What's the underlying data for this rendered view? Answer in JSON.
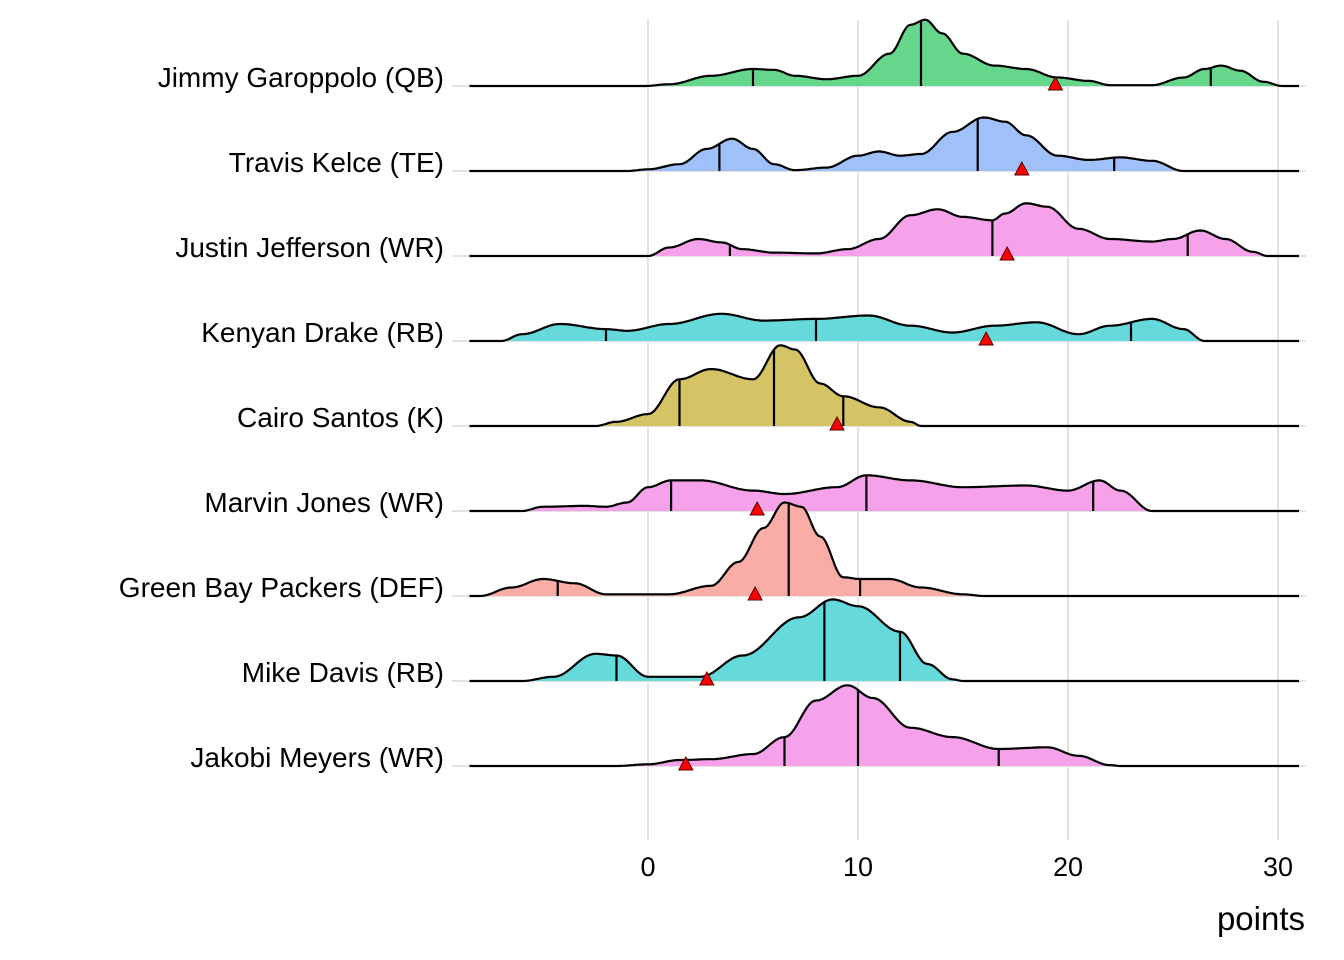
{
  "chart_data": {
    "type": "ridgeline",
    "title": "",
    "xlabel": "points",
    "ylabel": "",
    "xlim": [
      -8.5,
      31
    ],
    "xticks": [
      0,
      10,
      20,
      30
    ],
    "xtick_labels": [
      "0",
      "10",
      "20",
      "30"
    ],
    "grid": "vertical major gridlines",
    "legend": "none",
    "marker": {
      "shape": "triangle",
      "color": "#FF0000",
      "meaning": "actual/projected point marker per player"
    },
    "series": [
      {
        "name": "Jimmy Garoppolo (QB)",
        "color": "#66D68A",
        "quantiles": [
          5,
          13,
          26.8
        ],
        "marker_x": 19.4,
        "density": [
          [
            -0.2,
            0
          ],
          [
            1,
            0.02
          ],
          [
            3,
            0.12
          ],
          [
            5,
            0.2
          ],
          [
            6,
            0.19
          ],
          [
            7,
            0.12
          ],
          [
            8.5,
            0.08
          ],
          [
            10,
            0.12
          ],
          [
            11.5,
            0.38
          ],
          [
            12.5,
            0.72
          ],
          [
            13.2,
            0.78
          ],
          [
            14,
            0.62
          ],
          [
            15,
            0.38
          ],
          [
            16.5,
            0.24
          ],
          [
            18,
            0.2
          ],
          [
            19.5,
            0.1
          ],
          [
            21,
            0.06
          ],
          [
            22,
            0.01
          ],
          [
            24,
            0.01
          ],
          [
            25.5,
            0.1
          ],
          [
            26.5,
            0.2
          ],
          [
            27.3,
            0.24
          ],
          [
            28.2,
            0.18
          ],
          [
            29.3,
            0.05
          ],
          [
            30.2,
            0
          ]
        ]
      },
      {
        "name": "Travis Kelce (TE)",
        "color": "#A0C0FA",
        "quantiles": [
          3.4,
          15.7,
          22.2
        ],
        "marker_x": 17.8,
        "density": [
          [
            -1,
            0
          ],
          [
            0,
            0.02
          ],
          [
            1.5,
            0.08
          ],
          [
            2.8,
            0.26
          ],
          [
            4,
            0.38
          ],
          [
            5,
            0.26
          ],
          [
            6,
            0.08
          ],
          [
            7,
            0.01
          ],
          [
            8.5,
            0.04
          ],
          [
            10,
            0.18
          ],
          [
            11,
            0.23
          ],
          [
            12,
            0.18
          ],
          [
            13,
            0.2
          ],
          [
            14.5,
            0.46
          ],
          [
            16,
            0.63
          ],
          [
            17,
            0.58
          ],
          [
            18,
            0.42
          ],
          [
            19.5,
            0.18
          ],
          [
            21,
            0.13
          ],
          [
            22.5,
            0.16
          ],
          [
            24,
            0.12
          ],
          [
            25.5,
            0
          ],
          [
            26,
            0
          ]
        ]
      },
      {
        "name": "Justin Jefferson (WR)",
        "color": "#F6A2EA",
        "quantiles": [
          3.9,
          16.4,
          25.7
        ],
        "marker_x": 17.1,
        "density": [
          [
            0,
            0
          ],
          [
            1,
            0.1
          ],
          [
            2.4,
            0.2
          ],
          [
            3.5,
            0.16
          ],
          [
            4.5,
            0.08
          ],
          [
            6,
            0.04
          ],
          [
            8,
            0.03
          ],
          [
            9.5,
            0.08
          ],
          [
            11,
            0.2
          ],
          [
            12.5,
            0.48
          ],
          [
            13.8,
            0.55
          ],
          [
            15,
            0.46
          ],
          [
            16.4,
            0.42
          ],
          [
            17,
            0.5
          ],
          [
            18,
            0.62
          ],
          [
            19,
            0.58
          ],
          [
            20.5,
            0.32
          ],
          [
            22,
            0.2
          ],
          [
            24,
            0.17
          ],
          [
            25,
            0.2
          ],
          [
            26.3,
            0.3
          ],
          [
            27.5,
            0.2
          ],
          [
            28.8,
            0.05
          ],
          [
            29.5,
            0
          ]
        ]
      },
      {
        "name": "Kenyan Drake (RB)",
        "color": "#66D9DB",
        "quantiles": [
          -2,
          8,
          23
        ],
        "marker_x": 16.1,
        "density": [
          [
            -7,
            0
          ],
          [
            -6,
            0.08
          ],
          [
            -4.2,
            0.2
          ],
          [
            -2,
            0.14
          ],
          [
            -1,
            0.12
          ],
          [
            1,
            0.2
          ],
          [
            3.5,
            0.32
          ],
          [
            5.5,
            0.24
          ],
          [
            8,
            0.26
          ],
          [
            10.5,
            0.3
          ],
          [
            12.5,
            0.18
          ],
          [
            14.5,
            0.1
          ],
          [
            16.5,
            0.18
          ],
          [
            18.5,
            0.22
          ],
          [
            20.5,
            0.08
          ],
          [
            22,
            0.18
          ],
          [
            24,
            0.26
          ],
          [
            25.5,
            0.14
          ],
          [
            26.5,
            0
          ],
          [
            27,
            0
          ]
        ]
      },
      {
        "name": "Cairo Santos (K)",
        "color": "#D4C466",
        "quantiles": [
          1.5,
          6,
          9.3
        ],
        "marker_x": 9,
        "density": [
          [
            -2.5,
            0
          ],
          [
            -1.5,
            0.05
          ],
          [
            0,
            0.14
          ],
          [
            1.5,
            0.55
          ],
          [
            3,
            0.67
          ],
          [
            5,
            0.55
          ],
          [
            6.3,
            0.95
          ],
          [
            7,
            0.9
          ],
          [
            8.2,
            0.5
          ],
          [
            9.3,
            0.35
          ],
          [
            11,
            0.22
          ],
          [
            12.5,
            0.05
          ],
          [
            13,
            0
          ]
        ]
      },
      {
        "name": "Marvin Jones (WR)",
        "color": "#F6A2EA",
        "quantiles": [
          1.1,
          10.4,
          21.2
        ],
        "marker_x": 5.2,
        "density": [
          [
            -6,
            0
          ],
          [
            -5,
            0.05
          ],
          [
            -3,
            0.06
          ],
          [
            -2,
            0.05
          ],
          [
            -1,
            0.1
          ],
          [
            0,
            0.28
          ],
          [
            1.1,
            0.36
          ],
          [
            2.5,
            0.36
          ],
          [
            5,
            0.24
          ],
          [
            6.5,
            0.2
          ],
          [
            9,
            0.28
          ],
          [
            10.4,
            0.42
          ],
          [
            12.5,
            0.36
          ],
          [
            15,
            0.28
          ],
          [
            18,
            0.3
          ],
          [
            20,
            0.24
          ],
          [
            21.5,
            0.36
          ],
          [
            22.5,
            0.24
          ],
          [
            24,
            0
          ],
          [
            25,
            0
          ]
        ]
      },
      {
        "name": "Green Bay Packers (DEF)",
        "color": "#F9ADA6",
        "quantiles": [
          -4.3,
          6.7,
          10.1
        ],
        "marker_x": 5.1,
        "density": [
          [
            -8,
            0
          ],
          [
            -6.5,
            0.1
          ],
          [
            -5,
            0.2
          ],
          [
            -3.5,
            0.15
          ],
          [
            -2,
            0.02
          ],
          [
            1,
            0.02
          ],
          [
            3,
            0.12
          ],
          [
            4.3,
            0.4
          ],
          [
            5.5,
            0.8
          ],
          [
            6.5,
            1.1
          ],
          [
            7.3,
            1.05
          ],
          [
            8.2,
            0.7
          ],
          [
            9.3,
            0.22
          ],
          [
            10.1,
            0.2
          ],
          [
            11.5,
            0.2
          ],
          [
            13,
            0.1
          ],
          [
            15,
            0.02
          ],
          [
            16,
            0
          ]
        ]
      },
      {
        "name": "Mike Davis (RB)",
        "color": "#66D9DB",
        "quantiles": [
          -1.5,
          8.4,
          12
        ],
        "marker_x": 2.8,
        "density": [
          [
            -6,
            0
          ],
          [
            -4.5,
            0.05
          ],
          [
            -2.5,
            0.32
          ],
          [
            -1.5,
            0.3
          ],
          [
            0,
            0.05
          ],
          [
            2.5,
            0.05
          ],
          [
            4.5,
            0.3
          ],
          [
            7.2,
            0.75
          ],
          [
            8.8,
            0.96
          ],
          [
            10,
            0.88
          ],
          [
            12,
            0.58
          ],
          [
            13.3,
            0.2
          ],
          [
            14.5,
            0.02
          ],
          [
            15,
            0
          ]
        ]
      },
      {
        "name": "Jakobi Meyers (WR)",
        "color": "#F6A2EA",
        "quantiles": [
          6.5,
          10,
          16.7
        ],
        "marker_x": 1.8,
        "density": [
          [
            -1.5,
            0
          ],
          [
            0,
            0.02
          ],
          [
            1.5,
            0.07
          ],
          [
            3,
            0.08
          ],
          [
            5,
            0.14
          ],
          [
            6.5,
            0.34
          ],
          [
            8,
            0.77
          ],
          [
            9.5,
            0.95
          ],
          [
            10.7,
            0.8
          ],
          [
            12.5,
            0.45
          ],
          [
            14.5,
            0.34
          ],
          [
            16.7,
            0.2
          ],
          [
            19,
            0.22
          ],
          [
            20.5,
            0.12
          ],
          [
            22,
            0.01
          ],
          [
            22.5,
            0
          ]
        ]
      }
    ]
  }
}
